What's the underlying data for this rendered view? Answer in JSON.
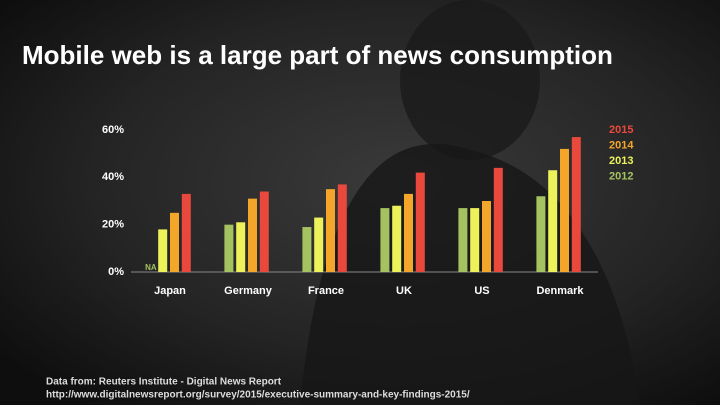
{
  "chart_data": {
    "type": "bar",
    "title": "Mobile web is a large part of news consumption",
    "categories": [
      "Japan",
      "Germany",
      "France",
      "UK",
      "US",
      "Denmark"
    ],
    "series": [
      {
        "name": "2012",
        "color": "#a5c261",
        "values": [
          null,
          20,
          19,
          27,
          27,
          32
        ],
        "value_labels": [
          "NA",
          null,
          null,
          null,
          null,
          null
        ]
      },
      {
        "name": "2013",
        "color": "#edf25a",
        "values": [
          18,
          21,
          23,
          28,
          27,
          43
        ]
      },
      {
        "name": "2014",
        "color": "#f4a62a",
        "values": [
          25,
          31,
          35,
          33,
          30,
          52
        ]
      },
      {
        "name": "2015",
        "color": "#e9493c",
        "values": [
          33,
          34,
          37,
          42,
          44,
          57
        ]
      }
    ],
    "ylim": [
      0,
      60
    ],
    "yticks": [
      {
        "value": 0,
        "label": "0%"
      },
      {
        "value": 20,
        "label": "20%"
      },
      {
        "value": 40,
        "label": "40%"
      },
      {
        "value": 60,
        "label": "60%"
      }
    ],
    "grid": false,
    "legend": "top-right",
    "footnote": [
      "Data from: Reuters Institute - Digital News Report",
      "http://www.digitalnewsreport.org/survey/2015/executive-summary-and-key-findings-2015/"
    ]
  }
}
